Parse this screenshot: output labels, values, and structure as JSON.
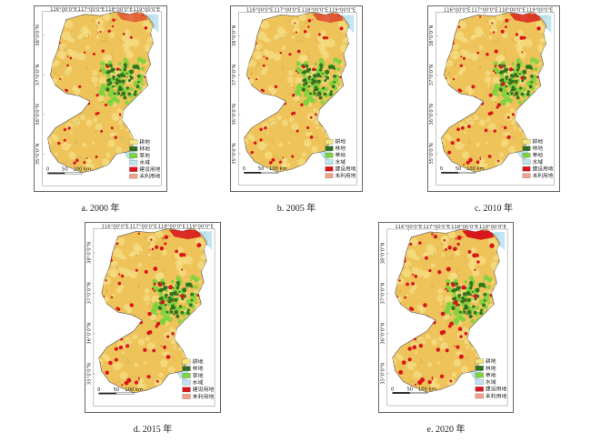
{
  "panels": [
    {
      "caption": "a. 2000 年",
      "built": 0.35
    },
    {
      "caption": "b. 2005 年",
      "built": 0.45
    },
    {
      "caption": "c. 2010 年",
      "built": 0.7
    },
    {
      "caption": "d. 2015 年",
      "built": 0.85
    },
    {
      "caption": "e. 2020 年",
      "built": 1.0
    }
  ],
  "top_ticks": [
    "116°00'0\"E",
    "117°00'0\"E",
    "118°00'0\"E",
    "119°00'0\"E"
  ],
  "left_ticks": [
    "38°0'0\"N",
    "37°0'0\"N",
    "36°0'0\"N",
    "35°0'0\"N"
  ],
  "north_label": "N",
  "scale": [
    "0",
    "50",
    "100 km"
  ],
  "legend": [
    {
      "label": "耕地",
      "color": "#f5e47a"
    },
    {
      "label": "林地",
      "color": "#2f6f1e"
    },
    {
      "label": "草地",
      "color": "#7dd33c"
    },
    {
      "label": "水域",
      "color": "#bde3f0"
    },
    {
      "label": "建设用地",
      "color": "#d8161b"
    },
    {
      "label": "未利用地",
      "color": "#f0a089"
    }
  ],
  "colors": {
    "cropland": "#eec35a",
    "cropland_light": "#f5df86",
    "forest": "#2f6f1e",
    "grass": "#7dd33c",
    "water": "#bde3f0",
    "built": "#d8161b",
    "border": "#9a8050"
  }
}
